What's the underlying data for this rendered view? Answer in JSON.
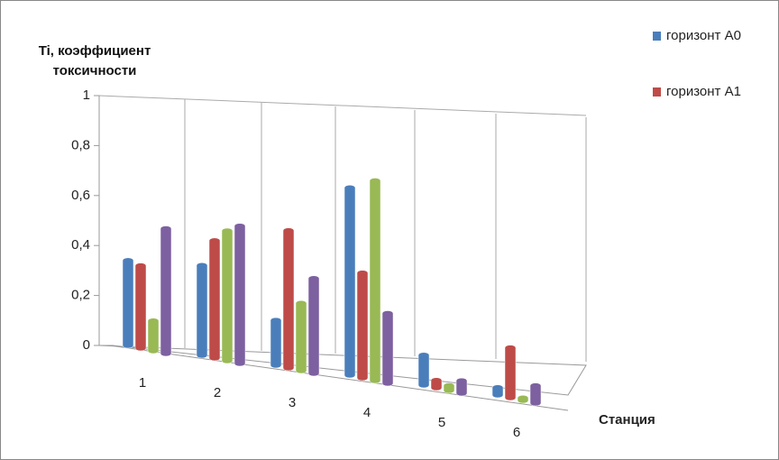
{
  "chart_data": {
    "type": "bar3d",
    "y_label": "Ti, коэффициент токсичности",
    "x_label": "Станция",
    "categories": [
      "1",
      "2",
      "3",
      "4",
      "5",
      "6"
    ],
    "series": [
      {
        "name": "горизонт А0",
        "color": "#4a7ebb",
        "values": [
          0.34,
          0.36,
          0.18,
          0.75,
          0.12,
          0.03
        ]
      },
      {
        "name": "горизонт А1",
        "color": "#be4b48",
        "values": [
          0.33,
          0.47,
          0.55,
          0.42,
          0.03,
          0.2
        ]
      },
      {
        "color": "#98b954",
        "values": [
          0.12,
          0.52,
          0.27,
          0.8,
          0.02,
          0.01
        ]
      },
      {
        "color": "#7d60a0",
        "values": [
          0.5,
          0.55,
          0.38,
          0.28,
          0.05,
          0.07
        ]
      }
    ],
    "ylim": [
      0,
      1
    ],
    "yticks": [
      0,
      {
        "value": 0.2,
        "label": "0,2"
      },
      {
        "value": 0.4,
        "label": "0,4"
      },
      {
        "value": 0.6,
        "label": "0,6"
      },
      {
        "value": 0.8,
        "label": "0,8"
      },
      1
    ]
  }
}
